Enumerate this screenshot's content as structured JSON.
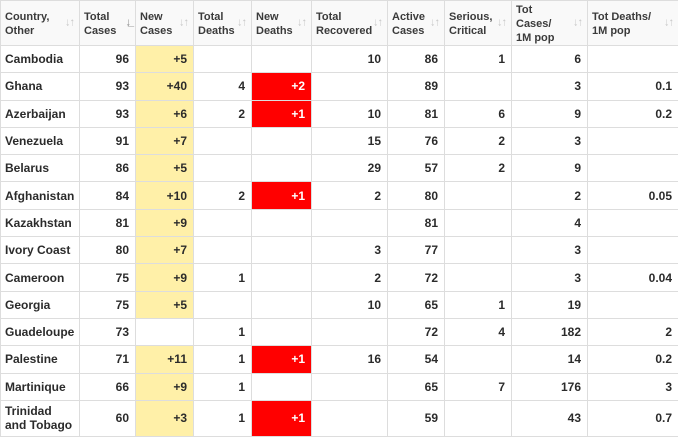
{
  "columns": [
    {
      "line1": "Country,",
      "line2": "Other",
      "sort_icon": "sort-icon"
    },
    {
      "line1": "Total",
      "line2": "Cases",
      "sort_icon": "sort-desc-icon"
    },
    {
      "line1": "New",
      "line2": "Cases",
      "sort_icon": "sort-icon"
    },
    {
      "line1": "Total",
      "line2": "Deaths",
      "sort_icon": "sort-icon"
    },
    {
      "line1": "New",
      "line2": "Deaths",
      "sort_icon": "sort-icon"
    },
    {
      "line1": "Total",
      "line2": "Recovered",
      "sort_icon": "sort-icon"
    },
    {
      "line1": "Active",
      "line2": "Cases",
      "sort_icon": "sort-icon"
    },
    {
      "line1": "Serious,",
      "line2": "Critical",
      "sort_icon": "sort-icon"
    },
    {
      "line1": "Tot Cases/",
      "line2": "1M pop",
      "sort_icon": "sort-icon"
    },
    {
      "line1": "Tot Deaths/",
      "line2": "1M pop",
      "sort_icon": "sort-icon"
    }
  ],
  "rows": [
    {
      "country": "Cambodia",
      "total_cases": "96",
      "new_cases": "+5",
      "total_deaths": "",
      "new_deaths": "",
      "total_recovered": "10",
      "active_cases": "86",
      "serious_critical": "1",
      "tot_cases_1m": "6",
      "tot_deaths_1m": ""
    },
    {
      "country": "Ghana",
      "total_cases": "93",
      "new_cases": "+40",
      "total_deaths": "4",
      "new_deaths": "+2",
      "total_recovered": "",
      "active_cases": "89",
      "serious_critical": "",
      "tot_cases_1m": "3",
      "tot_deaths_1m": "0.1"
    },
    {
      "country": "Azerbaijan",
      "total_cases": "93",
      "new_cases": "+6",
      "total_deaths": "2",
      "new_deaths": "+1",
      "total_recovered": "10",
      "active_cases": "81",
      "serious_critical": "6",
      "tot_cases_1m": "9",
      "tot_deaths_1m": "0.2"
    },
    {
      "country": "Venezuela",
      "total_cases": "91",
      "new_cases": "+7",
      "total_deaths": "",
      "new_deaths": "",
      "total_recovered": "15",
      "active_cases": "76",
      "serious_critical": "2",
      "tot_cases_1m": "3",
      "tot_deaths_1m": ""
    },
    {
      "country": "Belarus",
      "total_cases": "86",
      "new_cases": "+5",
      "total_deaths": "",
      "new_deaths": "",
      "total_recovered": "29",
      "active_cases": "57",
      "serious_critical": "2",
      "tot_cases_1m": "9",
      "tot_deaths_1m": ""
    },
    {
      "country": "Afghanistan",
      "total_cases": "84",
      "new_cases": "+10",
      "total_deaths": "2",
      "new_deaths": "+1",
      "total_recovered": "2",
      "active_cases": "80",
      "serious_critical": "",
      "tot_cases_1m": "2",
      "tot_deaths_1m": "0.05"
    },
    {
      "country": "Kazakhstan",
      "total_cases": "81",
      "new_cases": "+9",
      "total_deaths": "",
      "new_deaths": "",
      "total_recovered": "",
      "active_cases": "81",
      "serious_critical": "",
      "tot_cases_1m": "4",
      "tot_deaths_1m": ""
    },
    {
      "country": "Ivory Coast",
      "total_cases": "80",
      "new_cases": "+7",
      "total_deaths": "",
      "new_deaths": "",
      "total_recovered": "3",
      "active_cases": "77",
      "serious_critical": "",
      "tot_cases_1m": "3",
      "tot_deaths_1m": ""
    },
    {
      "country": "Cameroon",
      "total_cases": "75",
      "new_cases": "+9",
      "total_deaths": "1",
      "new_deaths": "",
      "total_recovered": "2",
      "active_cases": "72",
      "serious_critical": "",
      "tot_cases_1m": "3",
      "tot_deaths_1m": "0.04"
    },
    {
      "country": "Georgia",
      "total_cases": "75",
      "new_cases": "+5",
      "total_deaths": "",
      "new_deaths": "",
      "total_recovered": "10",
      "active_cases": "65",
      "serious_critical": "1",
      "tot_cases_1m": "19",
      "tot_deaths_1m": ""
    },
    {
      "country": "Guadeloupe",
      "total_cases": "73",
      "new_cases": "",
      "total_deaths": "1",
      "new_deaths": "",
      "total_recovered": "",
      "active_cases": "72",
      "serious_critical": "4",
      "tot_cases_1m": "182",
      "tot_deaths_1m": "2"
    },
    {
      "country": "Palestine",
      "total_cases": "71",
      "new_cases": "+11",
      "total_deaths": "1",
      "new_deaths": "+1",
      "total_recovered": "16",
      "active_cases": "54",
      "serious_critical": "",
      "tot_cases_1m": "14",
      "tot_deaths_1m": "0.2"
    },
    {
      "country": "Martinique",
      "total_cases": "66",
      "new_cases": "+9",
      "total_deaths": "1",
      "new_deaths": "",
      "total_recovered": "",
      "active_cases": "65",
      "serious_critical": "7",
      "tot_cases_1m": "176",
      "tot_deaths_1m": "3"
    },
    {
      "country": "Trinidad and Tobago",
      "total_cases": "60",
      "new_cases": "+3",
      "total_deaths": "1",
      "new_deaths": "+1",
      "total_recovered": "",
      "active_cases": "59",
      "serious_critical": "",
      "tot_cases_1m": "43",
      "tot_deaths_1m": "0.7"
    }
  ],
  "colors": {
    "new_cases_highlight": "#fff0a8",
    "new_deaths_highlight": "#ff0000",
    "header_background": "#f9f9f9",
    "grid_line": "#dddddd"
  }
}
